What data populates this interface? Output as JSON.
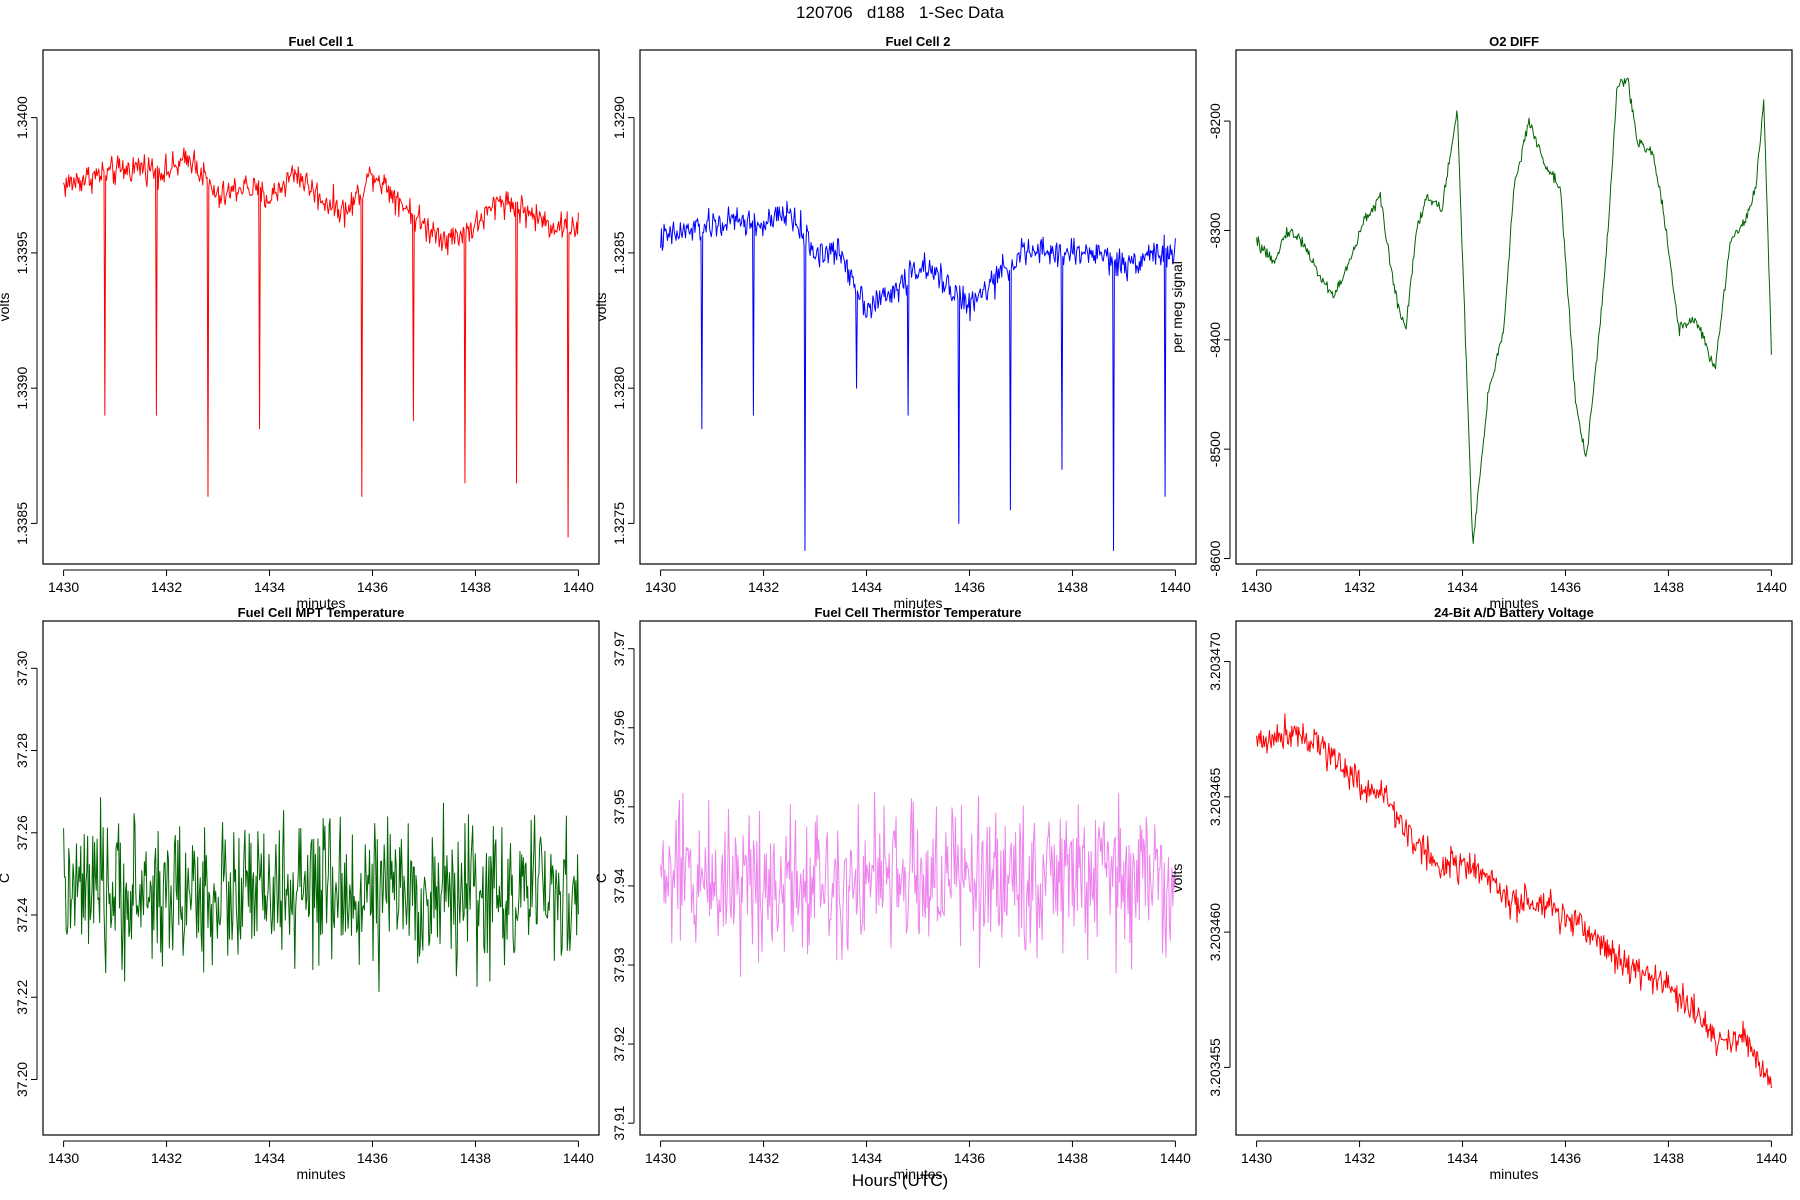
{
  "figure": {
    "title": "120706   d188   1-Sec Data",
    "xlabel": "Hours (UTC)"
  },
  "chart_data": [
    {
      "type": "line",
      "title": "Fuel Cell 1",
      "xlabel": "minutes",
      "ylabel": "volts",
      "color": "#ff0000",
      "xlim": [
        1429.6,
        1440.4
      ],
      "ylim": [
        1.33835,
        1.34025
      ],
      "xticks": [
        1430,
        1432,
        1434,
        1436,
        1438,
        1440
      ],
      "yticks": [
        1.3385,
        1.339,
        1.3395,
        1.34
      ],
      "ytick_labels": [
        "1.3385",
        "1.3390",
        "1.3395",
        "1.3400"
      ],
      "series": [
        {
          "x": [
            1430,
            1430.5,
            1431,
            1431.5,
            1432,
            1432.5,
            1433,
            1433.5,
            1434,
            1434.5,
            1435,
            1435.5,
            1436,
            1436.5,
            1437,
            1437.5,
            1438,
            1438.5,
            1439,
            1439.5,
            1440
          ],
          "y": [
            1.33975,
            1.33978,
            1.3398,
            1.33982,
            1.3398,
            1.33985,
            1.3397,
            1.33975,
            1.3397,
            1.3398,
            1.3397,
            1.33965,
            1.3398,
            1.3397,
            1.3396,
            1.33955,
            1.3396,
            1.3397,
            1.33965,
            1.3396,
            1.3396
          ],
          "noise": 8e-05,
          "spikes": [
            [
              1430.8,
              1.3389
            ],
            [
              1431.8,
              1.3389
            ],
            [
              1432.8,
              1.3386
            ],
            [
              1433.8,
              1.33885
            ],
            [
              1435.8,
              1.3386
            ],
            [
              1436.8,
              1.33888
            ],
            [
              1437.8,
              1.33865
            ],
            [
              1438.8,
              1.33865
            ],
            [
              1439.8,
              1.33845
            ]
          ]
        }
      ]
    },
    {
      "type": "line",
      "title": "Fuel Cell 2",
      "xlabel": "minutes",
      "ylabel": "volts",
      "color": "#0000ff",
      "xlim": [
        1429.6,
        1440.4
      ],
      "ylim": [
        1.32735,
        1.32925
      ],
      "xticks": [
        1430,
        1432,
        1434,
        1436,
        1438,
        1440
      ],
      "yticks": [
        1.3275,
        1.328,
        1.3285,
        1.329
      ],
      "ytick_labels": [
        "1.3275",
        "1.3280",
        "1.3285",
        "1.3290"
      ],
      "series": [
        {
          "x": [
            1430,
            1430.5,
            1431,
            1431.5,
            1432,
            1432.5,
            1433,
            1433.5,
            1434,
            1434.5,
            1435,
            1435.5,
            1436,
            1436.5,
            1437,
            1437.5,
            1438,
            1438.5,
            1439,
            1439.5,
            1440
          ],
          "y": [
            1.32855,
            1.32858,
            1.3286,
            1.32862,
            1.3286,
            1.32865,
            1.3285,
            1.3285,
            1.3283,
            1.32835,
            1.32845,
            1.3284,
            1.3283,
            1.3284,
            1.3285,
            1.3285,
            1.3285,
            1.3285,
            1.32845,
            1.3285,
            1.3285
          ],
          "noise": 8e-05,
          "spikes": [
            [
              1430.8,
              1.32785
            ],
            [
              1431.8,
              1.3279
            ],
            [
              1432.8,
              1.3274
            ],
            [
              1433.8,
              1.328
            ],
            [
              1434.8,
              1.3279
            ],
            [
              1435.8,
              1.3275
            ],
            [
              1436.8,
              1.32755
            ],
            [
              1437.8,
              1.3277
            ],
            [
              1438.8,
              1.3274
            ],
            [
              1439.8,
              1.3276
            ]
          ]
        }
      ]
    },
    {
      "type": "line",
      "title": "O2 DIFF",
      "xlabel": "minutes",
      "ylabel": "per meg signal",
      "color": "#006400",
      "xlim": [
        1429.6,
        1440.4
      ],
      "ylim": [
        -8605,
        -8135
      ],
      "xticks": [
        1430,
        1432,
        1434,
        1436,
        1438,
        1440
      ],
      "yticks": [
        -8600,
        -8500,
        -8400,
        -8300,
        -8200
      ],
      "ytick_labels": [
        "-8600",
        "-8500",
        "-8400",
        "-8300",
        "-8200"
      ],
      "series": [
        {
          "x": [
            1430,
            1430.3,
            1430.6,
            1430.9,
            1431.2,
            1431.5,
            1431.8,
            1432.1,
            1432.4,
            1432.7,
            1432.9,
            1433.1,
            1433.3,
            1433.6,
            1433.9,
            1434.2,
            1434.5,
            1434.8,
            1435,
            1435.3,
            1435.6,
            1435.9,
            1436.2,
            1436.4,
            1436.6,
            1436.8,
            1437,
            1437.2,
            1437.4,
            1437.7,
            1437.9,
            1438.2,
            1438.5,
            1438.7,
            1438.9,
            1439.2,
            1439.5,
            1439.7,
            1439.85,
            1440
          ],
          "y": [
            -8310,
            -8330,
            -8300,
            -8310,
            -8340,
            -8360,
            -8330,
            -8290,
            -8270,
            -8360,
            -8390,
            -8300,
            -8270,
            -8280,
            -8190,
            -8590,
            -8450,
            -8390,
            -8260,
            -8200,
            -8240,
            -8260,
            -8460,
            -8510,
            -8420,
            -8320,
            -8170,
            -8160,
            -8220,
            -8230,
            -8280,
            -8390,
            -8380,
            -8400,
            -8430,
            -8310,
            -8290,
            -8260,
            -8180,
            -8410
          ],
          "noise": 8
        }
      ]
    },
    {
      "type": "line",
      "title": "Fuel Cell MPT Temperature",
      "xlabel": "minutes",
      "ylabel": "C",
      "color": "#006400",
      "xlim": [
        1429.6,
        1440.4
      ],
      "ylim": [
        37.1865,
        37.3115
      ],
      "xticks": [
        1430,
        1432,
        1434,
        1436,
        1438,
        1440
      ],
      "yticks": [
        37.2,
        37.22,
        37.24,
        37.26,
        37.28,
        37.3
      ],
      "ytick_labels": [
        "37.20",
        "37.22",
        "37.24",
        "37.26",
        "37.28",
        "37.30"
      ],
      "series": [
        {
          "x": [
            1430,
            1440
          ],
          "y": [
            37.245,
            37.245
          ],
          "noise": 0.026
        }
      ]
    },
    {
      "type": "line",
      "title": "Fuel Cell Thermistor Temperature",
      "xlabel": "minutes",
      "ylabel": "C",
      "color": "#ee82ee",
      "xlim": [
        1429.6,
        1440.4
      ],
      "ylim": [
        37.9085,
        37.9735
      ],
      "xticks": [
        1430,
        1432,
        1434,
        1436,
        1438,
        1440
      ],
      "yticks": [
        37.91,
        37.92,
        37.93,
        37.94,
        37.95,
        37.96,
        37.97
      ],
      "ytick_labels": [
        "37.91",
        "37.92",
        "37.93",
        "37.94",
        "37.95",
        "37.96",
        "37.97"
      ],
      "series": [
        {
          "x": [
            1430,
            1440
          ],
          "y": [
            37.941,
            37.941
          ],
          "noise": 0.014
        }
      ]
    },
    {
      "type": "line",
      "title": "24-Bit A/D Battery Voltage",
      "xlabel": "minutes",
      "ylabel": "volts",
      "color": "#ff0000",
      "xlim": [
        1429.6,
        1440.4
      ],
      "ylim": [
        3.2034525,
        3.2034715
      ],
      "xticks": [
        1430,
        1432,
        1434,
        1436,
        1438,
        1440
      ],
      "yticks": [
        3.203455,
        3.20346,
        3.203465,
        3.20347
      ],
      "ytick_labels": [
        "3.203455",
        "3.203460",
        "3.203465",
        "3.203470"
      ],
      "series": [
        {
          "x": [
            1430,
            1430.8,
            1431.5,
            1432,
            1432.5,
            1433,
            1433.5,
            1434,
            1434.5,
            1435,
            1435.5,
            1436,
            1436.5,
            1437,
            1437.5,
            1438,
            1438.5,
            1439,
            1439.5,
            1440
          ],
          "y": [
            3.203467,
            3.2034675,
            3.2034665,
            3.2034655,
            3.203465,
            3.2034635,
            3.2034625,
            3.2034625,
            3.203462,
            3.203461,
            3.203461,
            3.2034605,
            3.20346,
            3.203459,
            3.2034585,
            3.203458,
            3.203457,
            3.203456,
            3.203456,
            3.2034545
          ],
          "noise": 9e-07
        }
      ]
    }
  ]
}
